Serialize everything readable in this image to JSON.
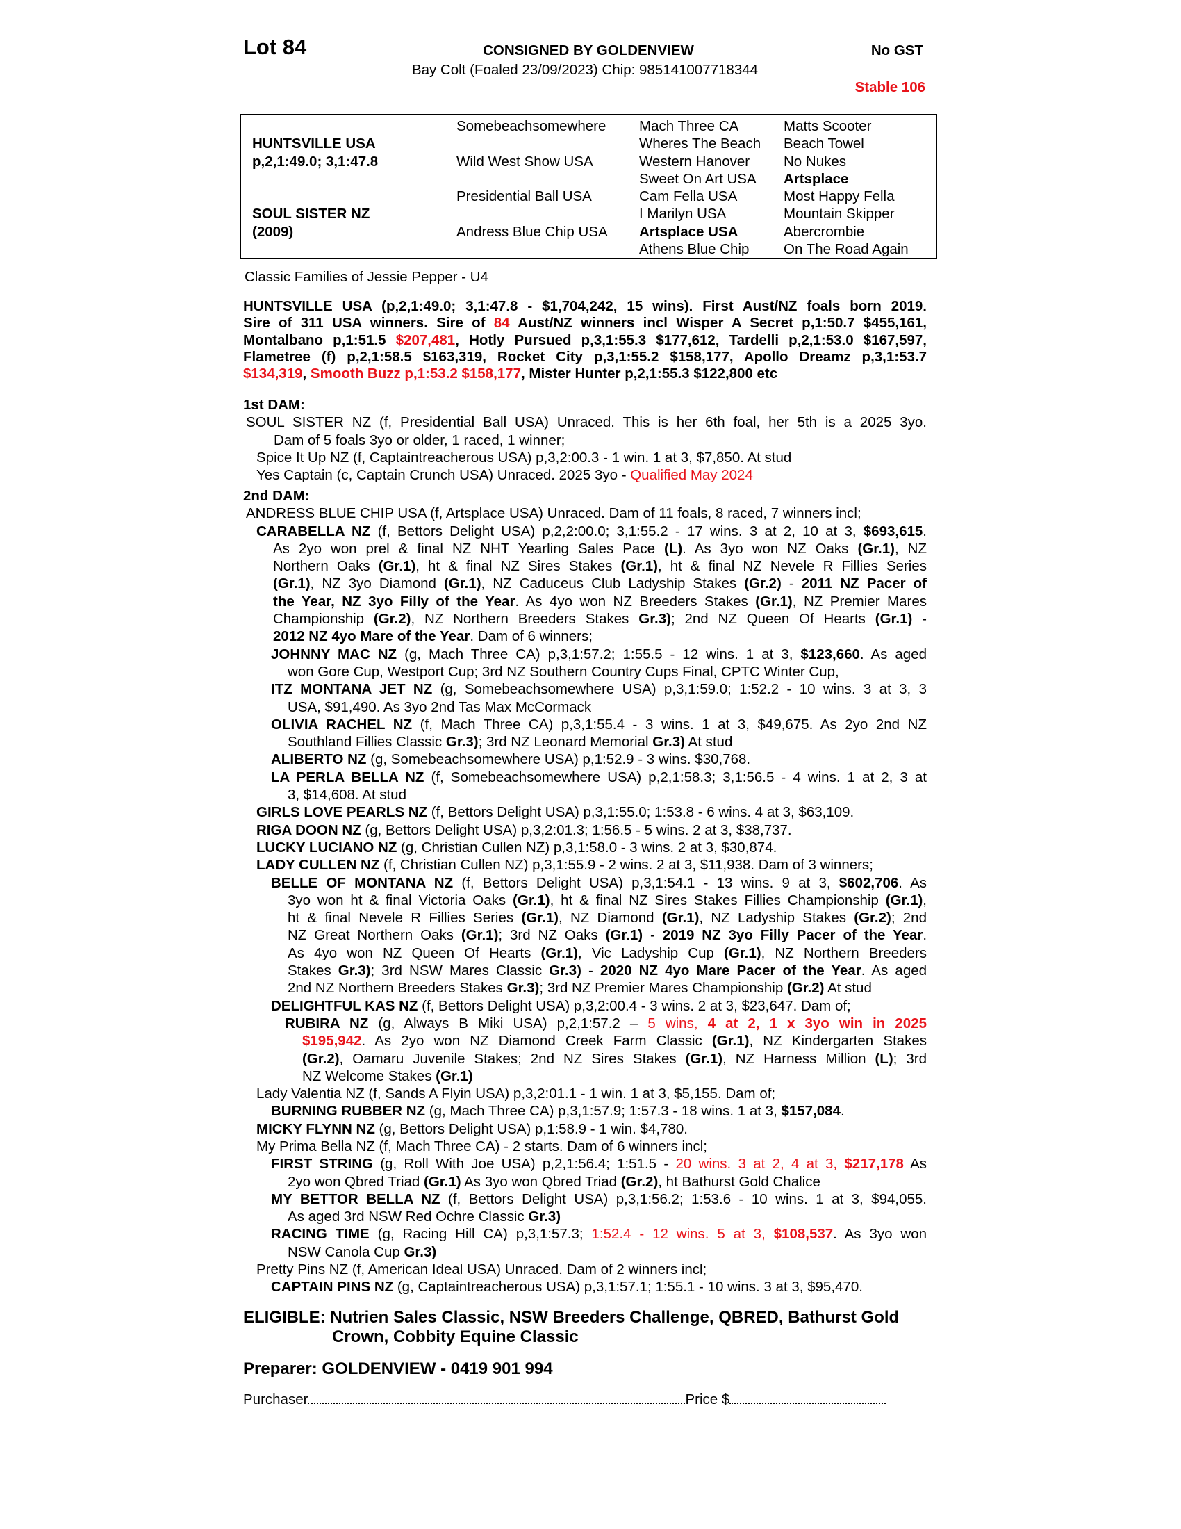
{
  "header": {
    "lot": "Lot 84",
    "consigned": "CONSIGNED BY GOLDENVIEW",
    "gst": "No GST",
    "description": "Bay Colt (Foaled 23/09/2023) Chip: 985141007718344",
    "stable": "Stable 106"
  },
  "pedigree": {
    "col1": [
      "",
      "HUNTSVILLE USA",
      "p,2,1:49.0; 3,1:47.8",
      "",
      "",
      "SOUL SISTER NZ",
      "(2009)",
      ""
    ],
    "col2": [
      "Somebeachsomewhere",
      "",
      "Wild West Show USA",
      "",
      "Presidential Ball USA",
      "",
      "Andress Blue Chip USA",
      ""
    ],
    "col3": [
      "Mach Three CA",
      "Wheres The Beach",
      "Western Hanover",
      "Sweet On Art USA",
      "Cam Fella USA",
      "I Marilyn USA",
      "Artsplace USA",
      "Athens Blue Chip"
    ],
    "col4": [
      "Matts Scooter",
      "Beach Towel",
      "No Nukes",
      "Artsplace",
      "Most Happy Fella",
      "Mountain Skipper",
      "Abercrombie",
      "On The Road Again"
    ],
    "bold": {
      "col1": [
        1,
        2,
        5,
        6
      ],
      "col3": [
        6
      ],
      "col4": [
        3
      ]
    }
  },
  "family": "Classic Families of Jessie Pepper - U4",
  "sire": {
    "lines": [
      [
        [
          "HUNTSVILLE USA (p,2,1:49.0; 3,1:47.8 - $1,704,242, 15 wins).  First Aust/NZ foals born 2019.",
          "b"
        ]
      ],
      [
        [
          "Sire of 311 USA winners. Sire of ",
          "b"
        ],
        [
          "84",
          "r"
        ],
        [
          " Aust/NZ winners incl Wisper A Secret p,1:50.7 $455,161,",
          "b"
        ]
      ],
      [
        [
          "Montalbano p,1:51.5 ",
          "b"
        ],
        [
          "$207,481",
          "rb"
        ],
        [
          ", Hotly Pursued p,3,1:55.3 $177,612, Tardelli p,2,1:53.0 $167,597,",
          "b"
        ]
      ],
      [
        [
          "Flametree (f) p,2,1:58.5 $163,319, Rocket City p,3,1:55.2 $158,177, Apollo Dreamz p,3,1:53.7",
          "b"
        ]
      ],
      [
        [
          "$134,319",
          "rb"
        ],
        [
          ", ",
          "b"
        ],
        [
          "Smooth Buzz p,1:53.2 $158,177",
          "rb"
        ],
        [
          ", Mister Hunter p,2,1:55.3 $122,800 etc",
          "b"
        ]
      ]
    ]
  },
  "dam1": {
    "heading": "1st DAM:",
    "entries": [
      {
        "level": 0,
        "lines": [
          [
            [
              "SOUL SISTER NZ (f, Presidential Ball USA) Unraced. This is her 6th foal, her 5th is a 2025 3yo.",
              ""
            ]
          ],
          [
            [
              "Dam of 5 foals 3yo or older, 1 raced, 1 winner;",
              ""
            ]
          ]
        ]
      },
      {
        "level": 1,
        "lines": [
          [
            [
              "Spice It Up NZ (f, Captaintreacherous USA) p,3,2:00.3 - 1 win. 1 at 3, $7,850. At stud",
              ""
            ]
          ]
        ]
      },
      {
        "level": 1,
        "lines": [
          [
            [
              "Yes Captain (c, Captain Crunch USA) Unraced. 2025 3yo - ",
              ""
            ],
            [
              "Qualified May 2024",
              "r"
            ]
          ]
        ]
      }
    ]
  },
  "dam2": {
    "heading": "2nd DAM:",
    "entries": [
      {
        "level": 0,
        "lines": [
          [
            [
              "ANDRESS BLUE CHIP USA (f, Artsplace USA) Unraced. Dam of 11 foals, 8 raced, 7 winners incl;",
              ""
            ]
          ]
        ]
      },
      {
        "level": 1,
        "lines": [
          [
            [
              "CARABELLA NZ",
              "b"
            ],
            [
              " (f, Bettors Delight USA) p,2,2:00.0; 3,1:55.2 - 17 wins. 3 at 2, 10 at 3, ",
              ""
            ],
            [
              "$693,615",
              "b"
            ],
            [
              ".",
              ""
            ]
          ],
          [
            [
              "As 2yo won prel & final NZ NHT Yearling Sales Pace ",
              ""
            ],
            [
              "(L)",
              "b"
            ],
            [
              ". As 3yo won NZ Oaks ",
              ""
            ],
            [
              "(Gr.1)",
              "b"
            ],
            [
              ", NZ",
              ""
            ]
          ],
          [
            [
              "Northern Oaks ",
              ""
            ],
            [
              "(Gr.1)",
              "b"
            ],
            [
              ", ht & final NZ Sires Stakes ",
              ""
            ],
            [
              "(Gr.1)",
              "b"
            ],
            [
              ", ht & final NZ Nevele R Fillies Series",
              ""
            ]
          ],
          [
            [
              "(Gr.1)",
              "b"
            ],
            [
              ", NZ 3yo Diamond ",
              ""
            ],
            [
              "(Gr.1)",
              "b"
            ],
            [
              ", NZ Caduceus Club Ladyship Stakes ",
              ""
            ],
            [
              "(Gr.2)",
              "b"
            ],
            [
              " - ",
              ""
            ],
            [
              "2011 NZ Pacer of",
              "b"
            ]
          ],
          [
            [
              "the Year, NZ 3yo Filly of the Year",
              "b"
            ],
            [
              ". As 4yo won NZ Breeders Stakes ",
              ""
            ],
            [
              "(Gr.1)",
              "b"
            ],
            [
              ", NZ Premier Mares",
              ""
            ]
          ],
          [
            [
              "Championship ",
              ""
            ],
            [
              "(Gr.2)",
              "b"
            ],
            [
              ", NZ Northern Breeders Stakes ",
              ""
            ],
            [
              "Gr.3)",
              "b"
            ],
            [
              "; 2nd NZ Queen Of Hearts ",
              ""
            ],
            [
              "(Gr.1)",
              "b"
            ],
            [
              " -",
              ""
            ]
          ],
          [
            [
              "2012 NZ 4yo Mare of the Year",
              "b"
            ],
            [
              ". Dam of 6 winners;",
              ""
            ]
          ]
        ]
      },
      {
        "level": 2,
        "lines": [
          [
            [
              "JOHNNY MAC NZ",
              "b"
            ],
            [
              " (g, Mach Three CA) p,3,1:57.2; 1:55.5 - 12 wins. 1 at 3, ",
              ""
            ],
            [
              "$123,660",
              "b"
            ],
            [
              ". As aged",
              ""
            ]
          ],
          [
            [
              "won Gore Cup, Westport Cup; 3rd NZ Southern Country Cups Final, CPTC Winter Cup,",
              ""
            ]
          ]
        ]
      },
      {
        "level": 2,
        "lines": [
          [
            [
              "ITZ MONTANA JET NZ",
              "b"
            ],
            [
              " (g, Somebeachsomewhere USA) p,3,1:59.0; 1:52.2 - 10 wins. 3 at 3, 3",
              ""
            ]
          ],
          [
            [
              "USA, $91,490. As 3yo 2nd Tas Max McCormack",
              ""
            ]
          ]
        ]
      },
      {
        "level": 2,
        "lines": [
          [
            [
              "OLIVIA RACHEL NZ",
              "b"
            ],
            [
              " (f, Mach Three CA) p,3,1:55.4 - 3 wins. 1 at 3, $49,675. As 2yo 2nd NZ",
              ""
            ]
          ],
          [
            [
              "Southland Fillies Classic ",
              ""
            ],
            [
              "Gr.3)",
              "b"
            ],
            [
              "; 3rd NZ Leonard Memorial ",
              ""
            ],
            [
              "Gr.3)",
              "b"
            ],
            [
              " At stud",
              ""
            ]
          ]
        ]
      },
      {
        "level": 2,
        "lines": [
          [
            [
              "ALIBERTO NZ",
              "b"
            ],
            [
              " (g, Somebeachsomewhere USA) p,1:52.9 - 3 wins. $30,768.",
              ""
            ]
          ]
        ]
      },
      {
        "level": 2,
        "lines": [
          [
            [
              "LA PERLA BELLA NZ",
              "b"
            ],
            [
              " (f, Somebeachsomewhere USA) p,2,1:58.3; 3,1:56.5 - 4 wins. 1 at 2, 3 at",
              ""
            ]
          ],
          [
            [
              "3, $14,608. At stud",
              ""
            ]
          ]
        ]
      },
      {
        "level": 1,
        "lines": [
          [
            [
              "GIRLS LOVE PEARLS NZ",
              "b"
            ],
            [
              " (f, Bettors Delight USA) p,3,1:55.0; 1:53.8 - 6 wins. 4 at 3, $63,109.",
              ""
            ]
          ]
        ]
      },
      {
        "level": 1,
        "lines": [
          [
            [
              "RIGA DOON NZ",
              "b"
            ],
            [
              " (g, Bettors Delight USA) p,3,2:01.3; 1:56.5 - 5 wins. 2 at 3, $38,737.",
              ""
            ]
          ]
        ]
      },
      {
        "level": 1,
        "lines": [
          [
            [
              "LUCKY LUCIANO NZ",
              "b"
            ],
            [
              " (g, Christian Cullen NZ) p,3,1:58.0 - 3 wins. 2 at 3, $30,874.",
              ""
            ]
          ]
        ]
      },
      {
        "level": 1,
        "lines": [
          [
            [
              "LADY CULLEN NZ",
              "b"
            ],
            [
              " (f, Christian Cullen NZ) p,3,1:55.9 - 2 wins. 2 at 3, $11,938. Dam of 3 winners;",
              ""
            ]
          ]
        ]
      },
      {
        "level": 2,
        "lines": [
          [
            [
              "BELLE OF MONTANA NZ",
              "b"
            ],
            [
              " (f, Bettors Delight USA) p,3,1:54.1 - 13 wins. 9 at 3, ",
              ""
            ],
            [
              "$602,706",
              "b"
            ],
            [
              ". As",
              ""
            ]
          ],
          [
            [
              "3yo won ht & final Victoria Oaks ",
              ""
            ],
            [
              "(Gr.1)",
              "b"
            ],
            [
              ", ht & final NZ Sires Stakes Fillies Championship ",
              ""
            ],
            [
              "(Gr.1)",
              "b"
            ],
            [
              ",",
              ""
            ]
          ],
          [
            [
              "ht & final Nevele R Fillies Series ",
              ""
            ],
            [
              "(Gr.1)",
              "b"
            ],
            [
              ", NZ Diamond ",
              ""
            ],
            [
              "(Gr.1)",
              "b"
            ],
            [
              ", NZ Ladyship Stakes ",
              ""
            ],
            [
              "(Gr.2)",
              "b"
            ],
            [
              "; 2nd",
              ""
            ]
          ],
          [
            [
              "NZ Great Northern Oaks ",
              ""
            ],
            [
              "(Gr.1)",
              "b"
            ],
            [
              "; 3rd NZ Oaks ",
              ""
            ],
            [
              "(Gr.1)",
              "b"
            ],
            [
              " - ",
              ""
            ],
            [
              "2019 NZ 3yo Filly Pacer of the Year",
              "b"
            ],
            [
              ".",
              ""
            ]
          ],
          [
            [
              "As 4yo won NZ Queen Of Hearts ",
              ""
            ],
            [
              "(Gr.1)",
              "b"
            ],
            [
              ", Vic Ladyship Cup ",
              ""
            ],
            [
              "(Gr.1)",
              "b"
            ],
            [
              ", NZ Northern Breeders",
              ""
            ]
          ],
          [
            [
              "Stakes ",
              ""
            ],
            [
              "Gr.3)",
              "b"
            ],
            [
              "; 3rd NSW Mares Classic ",
              ""
            ],
            [
              "Gr.3)",
              "b"
            ],
            [
              " - ",
              ""
            ],
            [
              "2020 NZ 4yo Mare Pacer of the Year",
              "b"
            ],
            [
              ". As aged",
              ""
            ]
          ],
          [
            [
              "2nd NZ Northern Breeders Stakes ",
              ""
            ],
            [
              "Gr.3)",
              "b"
            ],
            [
              "; 3rd NZ Premier Mares Championship ",
              ""
            ],
            [
              "(Gr.2)",
              "b"
            ],
            [
              " At stud",
              ""
            ]
          ]
        ]
      },
      {
        "level": 2,
        "lines": [
          [
            [
              "DELIGHTFUL KAS NZ",
              "b"
            ],
            [
              " (f, Bettors Delight USA) p,3,2:00.4 - 3 wins. 2 at 3, $23,647. Dam of;",
              ""
            ]
          ]
        ]
      },
      {
        "level": 3,
        "lines": [
          [
            [
              "RUBIRA NZ",
              "b"
            ],
            [
              " (g, Always B Miki USA) p,2,1:57.2 – ",
              ""
            ],
            [
              "5 wins, ",
              "r"
            ],
            [
              "4 at 2, 1 x 3yo win in 2025",
              "rb"
            ]
          ],
          [
            [
              "$195,942",
              "rb"
            ],
            [
              ". As 2yo won NZ Diamond Creek Farm Classic ",
              ""
            ],
            [
              "(Gr.1)",
              "b"
            ],
            [
              ", NZ Kindergarten Stakes",
              ""
            ]
          ],
          [
            [
              "(Gr.2)",
              "b"
            ],
            [
              ", Oamaru Juvenile Stakes; 2nd NZ Sires Stakes ",
              ""
            ],
            [
              "(Gr.1)",
              "b"
            ],
            [
              ", NZ Harness Million ",
              ""
            ],
            [
              "(L)",
              "b"
            ],
            [
              "; 3rd",
              ""
            ]
          ],
          [
            [
              "NZ Welcome Stakes ",
              ""
            ],
            [
              "(Gr.1)",
              "b"
            ]
          ]
        ]
      },
      {
        "level": 1,
        "lines": [
          [
            [
              "Lady Valentia NZ (f, Sands A Flyin USA) p,3,2:01.1 - 1 win. 1 at 3, $5,155. Dam of;",
              ""
            ]
          ]
        ]
      },
      {
        "level": 2,
        "lines": [
          [
            [
              "BURNING RUBBER NZ",
              "b"
            ],
            [
              " (g, Mach Three CA) p,3,1:57.9; 1:57.3 - 18 wins. 1 at 3, ",
              ""
            ],
            [
              "$157,084",
              "b"
            ],
            [
              ".",
              ""
            ]
          ]
        ]
      },
      {
        "level": 1,
        "lines": [
          [
            [
              "MICKY FLYNN NZ",
              "b"
            ],
            [
              " (g, Bettors Delight USA) p,1:58.9 - 1 win. $4,780.",
              ""
            ]
          ]
        ]
      },
      {
        "level": 1,
        "lines": [
          [
            [
              "My Prima Bella NZ (f, Mach Three CA) - 2 starts. Dam of 6 winners incl;",
              ""
            ]
          ]
        ]
      },
      {
        "level": 2,
        "lines": [
          [
            [
              "FIRST STRING",
              "b"
            ],
            [
              " (g, Roll With Joe USA) p,2,1:56.4; 1:51.5 - ",
              ""
            ],
            [
              "20 wins. 3 at 2, 4 at 3, ",
              "r"
            ],
            [
              "$217,178",
              "rb"
            ],
            [
              " As",
              ""
            ]
          ],
          [
            [
              "2yo won Qbred Triad ",
              ""
            ],
            [
              "(Gr.1)",
              "b"
            ],
            [
              " As 3yo won Qbred Triad ",
              ""
            ],
            [
              "(Gr.2)",
              "b"
            ],
            [
              ", ht Bathurst Gold Chalice",
              ""
            ]
          ]
        ]
      },
      {
        "level": 2,
        "lines": [
          [
            [
              "MY BETTOR BELLA NZ",
              "b"
            ],
            [
              " (f, Bettors Delight USA) p,3,1:56.2; 1:53.6 - 10 wins. 1 at 3, $94,055.",
              ""
            ]
          ],
          [
            [
              "As aged 3rd NSW Red Ochre Classic ",
              ""
            ],
            [
              "Gr.3)",
              "b"
            ]
          ]
        ]
      },
      {
        "level": 2,
        "lines": [
          [
            [
              "RACING TIME",
              "b"
            ],
            [
              " (g, Racing Hill CA) p,3,1:57.3; ",
              ""
            ],
            [
              "1:52.4 - 12 wins. 5 at 3, ",
              "r"
            ],
            [
              "$108,537",
              "rb"
            ],
            [
              ". As 3yo won",
              ""
            ]
          ],
          [
            [
              "NSW Canola Cup ",
              ""
            ],
            [
              "Gr.3)",
              "b"
            ]
          ]
        ]
      },
      {
        "level": 1,
        "lines": [
          [
            [
              "Pretty Pins NZ (f, American Ideal USA) Unraced. Dam of 2 winners incl;",
              ""
            ]
          ]
        ]
      },
      {
        "level": 2,
        "lines": [
          [
            [
              "CAPTAIN PINS NZ",
              "b"
            ],
            [
              " (g, Captaintreacherous USA) p,3,1:57.1; 1:55.1 - 10 wins. 3 at 3, $95,470.",
              ""
            ]
          ]
        ]
      }
    ]
  },
  "eligible": {
    "line1": "ELIGIBLE: Nutrien Sales Classic, NSW Breeders Challenge, QBRED, Bathurst Gold",
    "line2": "Crown, Cobbity Equine Classic"
  },
  "preparer": "Preparer: GOLDENVIEW - 0419 901 994",
  "purchase": {
    "purchaser_label": "Purchaser",
    "price_label": "Price $"
  },
  "colors": {
    "red": "#e8141b",
    "text": "#000000"
  }
}
